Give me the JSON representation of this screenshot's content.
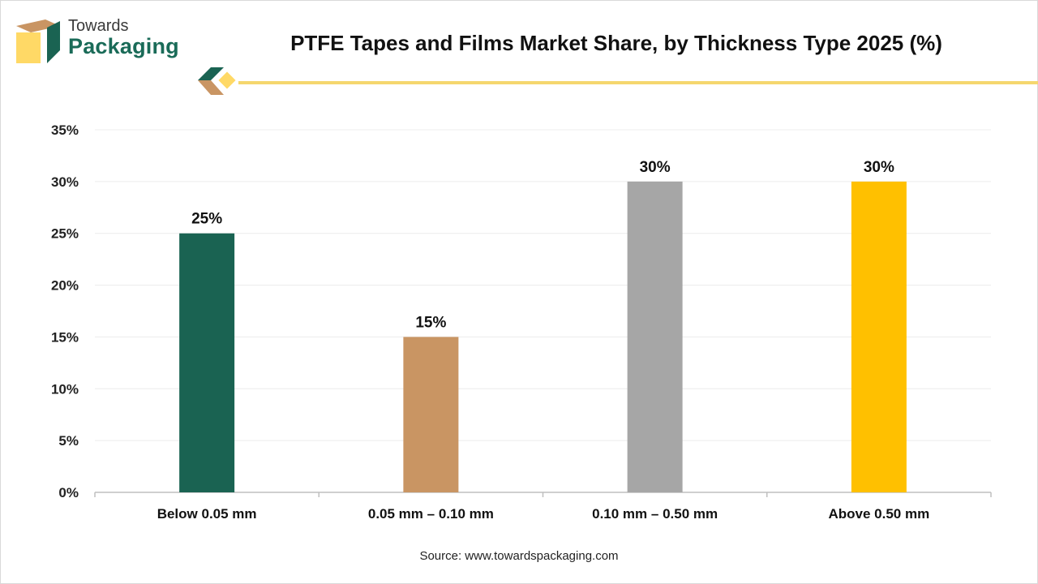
{
  "brand": {
    "name_top": "Towards",
    "name_bottom": "Packaging"
  },
  "source_text": "Source: www.towardspackaging.com",
  "colors": {
    "green": "#1a6352",
    "tan": "#c99563",
    "gray": "#a6a6a6",
    "yellow": "#ffc000",
    "accent_line": "#f5d76e"
  },
  "chart_data": {
    "type": "bar",
    "title": "PTFE Tapes and Films Market Share, by Thickness Type 2025 (%)",
    "categories": [
      "Below 0.05 mm",
      "0.05 mm – 0.10 mm",
      "0.10 mm – 0.50 mm",
      "Above 0.50 mm"
    ],
    "values": [
      25,
      15,
      30,
      30
    ],
    "data_labels": [
      "25%",
      "15%",
      "30%",
      "30%"
    ],
    "bar_colors": [
      "#1a6352",
      "#c99563",
      "#a6a6a6",
      "#ffc000"
    ],
    "ylim": [
      0,
      35
    ],
    "yticks": [
      0,
      5,
      10,
      15,
      20,
      25,
      30,
      35
    ],
    "ytick_labels": [
      "0%",
      "5%",
      "10%",
      "15%",
      "20%",
      "25%",
      "30%",
      "35%"
    ],
    "grid": true,
    "legend": "none"
  }
}
